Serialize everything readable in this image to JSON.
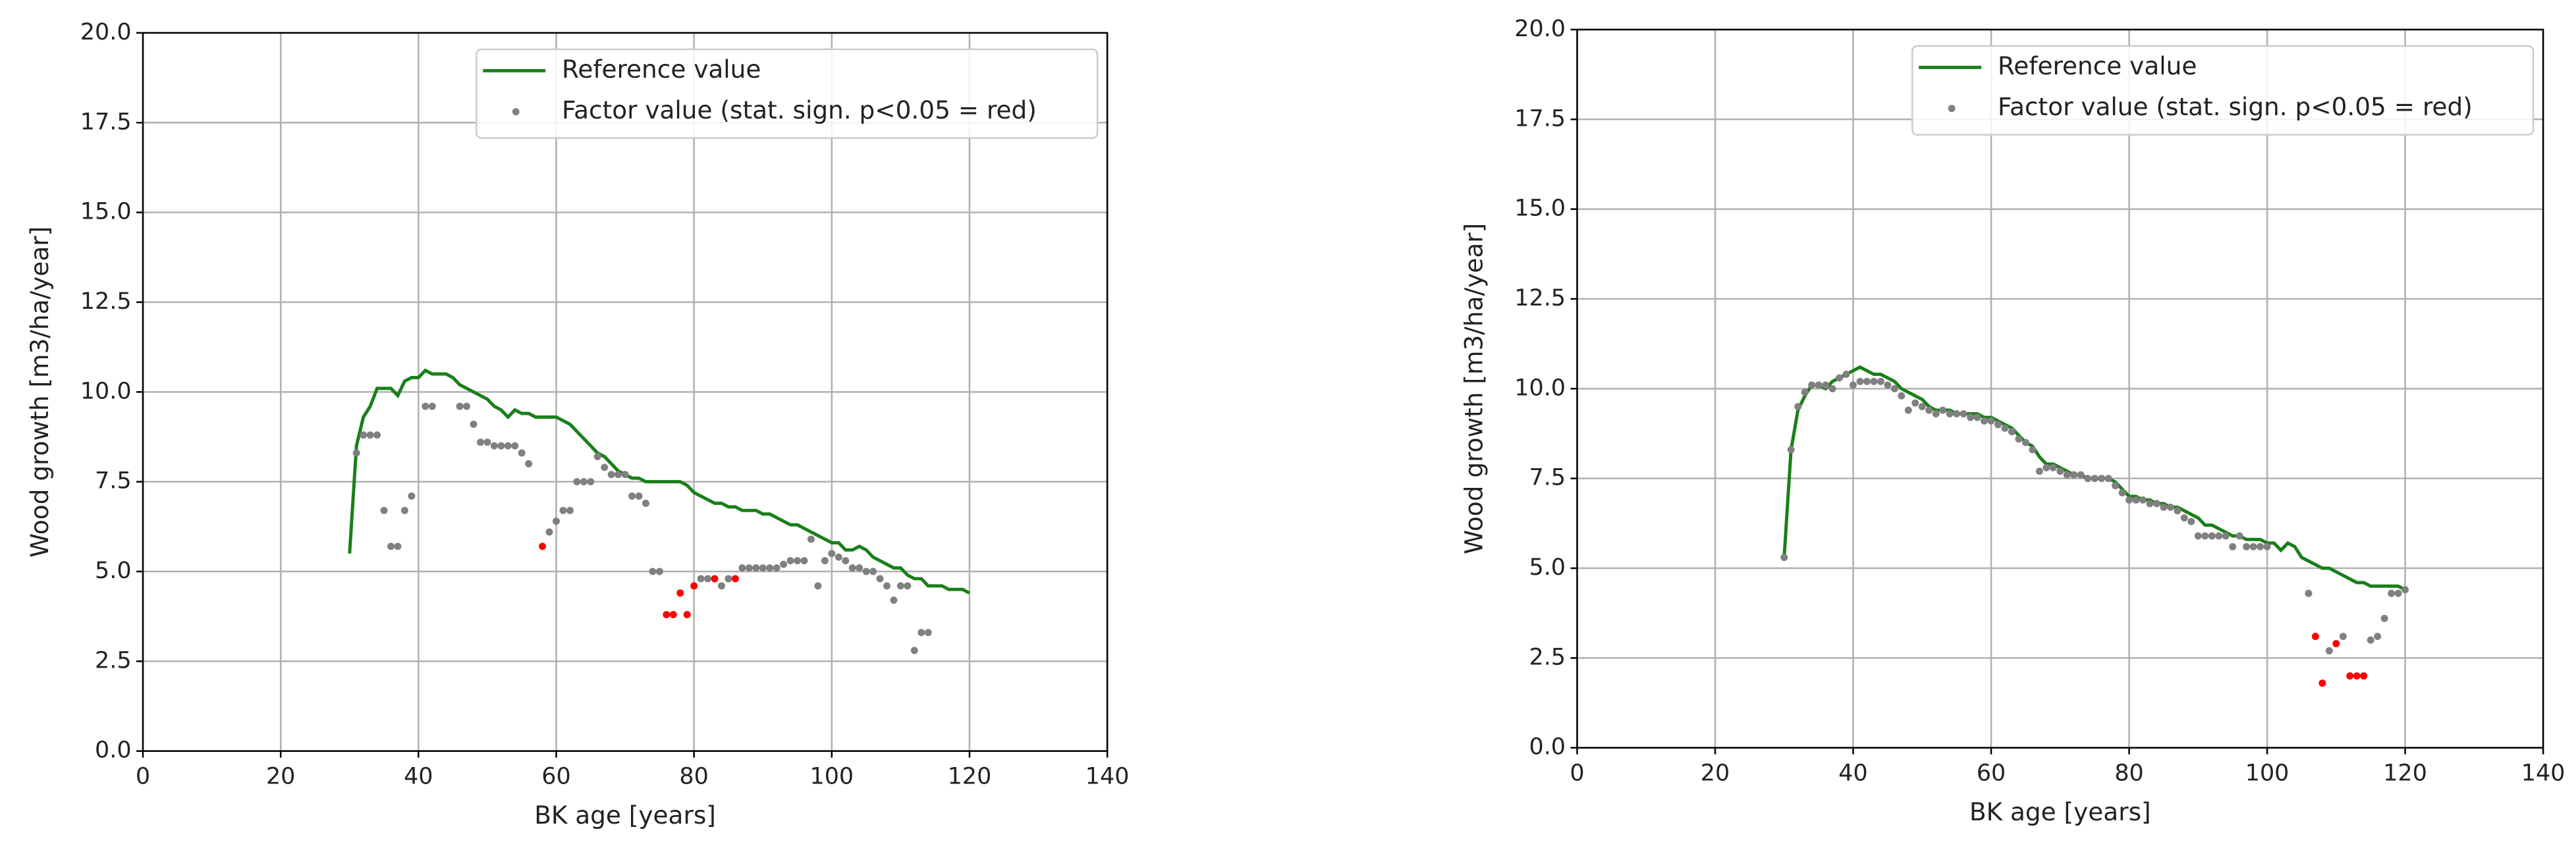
{
  "chart_data": [
    {
      "type": "line",
      "xlabel": "BK age [years]",
      "ylabel": "Wood growth [m3/ha/year]",
      "xlim": [
        0,
        140
      ],
      "ylim": [
        0,
        20
      ],
      "xticks": [
        0,
        20,
        40,
        60,
        80,
        100,
        120,
        140
      ],
      "yticks": [
        {
          "value": 0,
          "label": "0.0"
        },
        {
          "value": 2.5,
          "label": "2.5"
        },
        {
          "value": 5,
          "label": "5.0"
        },
        {
          "value": 7.5,
          "label": "7.5"
        },
        {
          "value": 10,
          "label": "10.0"
        },
        {
          "value": 12.5,
          "label": "12.5"
        },
        {
          "value": 15,
          "label": "15.0"
        },
        {
          "value": 17.5,
          "label": "17.5"
        },
        {
          "value": 20,
          "label": "20.0"
        }
      ],
      "grid": true,
      "legend": "upper right",
      "series": [
        {
          "name": "Reference value",
          "color": "#1a7f1a",
          "x": [
            30,
            31,
            32,
            33,
            34,
            35,
            36,
            37,
            38,
            39,
            40,
            41,
            42,
            43,
            44,
            45,
            46,
            47,
            48,
            49,
            50,
            51,
            52,
            53,
            54,
            55,
            56,
            57,
            58,
            59,
            60,
            61,
            62,
            63,
            64,
            65,
            66,
            67,
            68,
            69,
            70,
            71,
            72,
            73,
            74,
            75,
            76,
            77,
            78,
            79,
            80,
            81,
            82,
            83,
            84,
            85,
            86,
            87,
            88,
            89,
            90,
            91,
            92,
            93,
            94,
            95,
            96,
            97,
            98,
            99,
            100,
            101,
            102,
            103,
            104,
            105,
            106,
            107,
            108,
            109,
            110,
            111,
            112,
            113,
            114,
            115,
            116,
            117,
            118,
            119,
            120
          ],
          "values": [
            5.5,
            8.5,
            9.3,
            9.6,
            10.1,
            10.1,
            10.1,
            9.9,
            10.3,
            10.4,
            10.4,
            10.6,
            10.5,
            10.5,
            10.5,
            10.4,
            10.2,
            10.1,
            10.0,
            9.9,
            9.8,
            9.6,
            9.5,
            9.3,
            9.5,
            9.4,
            9.4,
            9.3,
            9.3,
            9.3,
            9.3,
            9.2,
            9.1,
            8.9,
            8.7,
            8.5,
            8.3,
            8.2,
            8.0,
            7.8,
            7.7,
            7.6,
            7.6,
            7.5,
            7.5,
            7.5,
            7.5,
            7.5,
            7.5,
            7.4,
            7.2,
            7.1,
            7.0,
            6.9,
            6.9,
            6.8,
            6.8,
            6.7,
            6.7,
            6.7,
            6.6,
            6.6,
            6.5,
            6.4,
            6.3,
            6.3,
            6.2,
            6.1,
            6.0,
            5.9,
            5.8,
            5.8,
            5.6,
            5.6,
            5.7,
            5.6,
            5.4,
            5.3,
            5.2,
            5.1,
            5.1,
            4.9,
            4.8,
            4.8,
            4.6,
            4.6,
            4.6,
            4.5,
            4.5,
            4.5,
            4.4
          ]
        },
        {
          "name": "Factor value (stat. sign. p<0.05 = red)",
          "type": "scatter",
          "color": "gray",
          "x": [
            31,
            32,
            33,
            34,
            35,
            36,
            37,
            38,
            39,
            41,
            42,
            46,
            47,
            48,
            49,
            50,
            51,
            52,
            53,
            54,
            55,
            56,
            58,
            59,
            60,
            61,
            62,
            63,
            64,
            65,
            66,
            67,
            68,
            69,
            70,
            71,
            72,
            73,
            74,
            75,
            76,
            77,
            78,
            79,
            80,
            81,
            82,
            83,
            84,
            85,
            86,
            87,
            88,
            89,
            90,
            91,
            92,
            93,
            94,
            95,
            96,
            97,
            98,
            99,
            100,
            101,
            102,
            103,
            104,
            105,
            106,
            107,
            108,
            109,
            110,
            111,
            112,
            113,
            114
          ],
          "values": [
            8.3,
            8.8,
            8.8,
            8.8,
            6.7,
            5.7,
            5.7,
            6.7,
            7.1,
            9.6,
            9.6,
            9.6,
            9.6,
            9.1,
            8.6,
            8.6,
            8.5,
            8.5,
            8.5,
            8.5,
            8.3,
            8.0,
            5.7,
            6.1,
            6.4,
            6.7,
            6.7,
            7.5,
            7.5,
            7.5,
            8.2,
            7.9,
            7.7,
            7.7,
            7.7,
            7.1,
            7.1,
            6.9,
            5.0,
            5.0,
            3.8,
            3.8,
            4.4,
            3.8,
            4.6,
            4.8,
            4.8,
            4.8,
            4.6,
            4.8,
            4.8,
            5.1,
            5.1,
            5.1,
            5.1,
            5.1,
            5.1,
            5.2,
            5.3,
            5.3,
            5.3,
            5.9,
            4.6,
            5.3,
            5.5,
            5.4,
            5.3,
            5.1,
            5.1,
            5.0,
            5.0,
            4.8,
            4.6,
            4.2,
            4.6,
            4.6,
            2.8,
            3.3,
            3.3
          ],
          "point_colors": [
            "gray",
            "gray",
            "gray",
            "gray",
            "gray",
            "gray",
            "gray",
            "gray",
            "gray",
            "gray",
            "gray",
            "gray",
            "gray",
            "gray",
            "gray",
            "gray",
            "gray",
            "gray",
            "gray",
            "gray",
            "gray",
            "gray",
            "red",
            "gray",
            "gray",
            "gray",
            "gray",
            "gray",
            "gray",
            "gray",
            "gray",
            "gray",
            "gray",
            "gray",
            "gray",
            "gray",
            "gray",
            "gray",
            "gray",
            "gray",
            "red",
            "red",
            "red",
            "red",
            "red",
            "gray",
            "gray",
            "red",
            "gray",
            "gray",
            "red",
            "gray",
            "gray",
            "gray",
            "gray",
            "gray",
            "gray",
            "gray",
            "gray",
            "gray",
            "gray",
            "gray",
            "gray",
            "gray",
            "gray",
            "gray",
            "gray",
            "gray",
            "gray",
            "gray",
            "gray",
            "gray",
            "gray",
            "gray",
            "gray",
            "gray",
            "gray",
            "gray",
            "gray"
          ]
        }
      ]
    },
    {
      "type": "line",
      "xlabel": "BK age [years]",
      "ylabel": "Wood growth [m3/ha/year]",
      "xlim": [
        0,
        140
      ],
      "ylim": [
        0,
        20
      ],
      "xticks": [
        0,
        20,
        40,
        60,
        80,
        100,
        120,
        140
      ],
      "yticks": [
        {
          "value": 0,
          "label": "0.0"
        },
        {
          "value": 2.5,
          "label": "2.5"
        },
        {
          "value": 5,
          "label": "5.0"
        },
        {
          "value": 7.5,
          "label": "7.5"
        },
        {
          "value": 10,
          "label": "10.0"
        },
        {
          "value": 12.5,
          "label": "12.5"
        },
        {
          "value": 15,
          "label": "15.0"
        },
        {
          "value": 17.5,
          "label": "17.5"
        },
        {
          "value": 20,
          "label": "20.0"
        }
      ],
      "grid": true,
      "legend": "upper right",
      "series": [
        {
          "name": "Reference value",
          "color": "#1a7f1a",
          "x": [
            30,
            31,
            32,
            33,
            34,
            35,
            36,
            37,
            38,
            39,
            40,
            41,
            42,
            43,
            44,
            45,
            46,
            47,
            48,
            49,
            50,
            51,
            52,
            53,
            54,
            55,
            56,
            57,
            58,
            59,
            60,
            61,
            62,
            63,
            64,
            65,
            66,
            67,
            68,
            69,
            70,
            71,
            72,
            73,
            74,
            75,
            76,
            77,
            78,
            79,
            80,
            81,
            82,
            83,
            84,
            85,
            86,
            87,
            88,
            89,
            90,
            91,
            92,
            93,
            94,
            95,
            96,
            97,
            98,
            99,
            100,
            101,
            102,
            103,
            104,
            105,
            106,
            107,
            108,
            109,
            110,
            111,
            112,
            113,
            114,
            115,
            116,
            117,
            118,
            119,
            120
          ],
          "values": [
            5.3,
            8.3,
            9.4,
            9.8,
            10.1,
            10.1,
            10.0,
            10.2,
            10.3,
            10.4,
            10.5,
            10.6,
            10.5,
            10.4,
            10.4,
            10.3,
            10.2,
            10.0,
            9.9,
            9.8,
            9.7,
            9.5,
            9.4,
            9.4,
            9.4,
            9.3,
            9.3,
            9.3,
            9.3,
            9.2,
            9.2,
            9.1,
            9.0,
            8.9,
            8.7,
            8.5,
            8.4,
            8.1,
            7.9,
            7.9,
            7.8,
            7.7,
            7.6,
            7.6,
            7.5,
            7.5,
            7.5,
            7.5,
            7.4,
            7.2,
            7.0,
            7.0,
            6.9,
            6.9,
            6.8,
            6.8,
            6.7,
            6.7,
            6.6,
            6.5,
            6.4,
            6.2,
            6.2,
            6.1,
            6.0,
            5.9,
            5.9,
            5.8,
            5.8,
            5.8,
            5.7,
            5.7,
            5.5,
            5.7,
            5.6,
            5.3,
            5.2,
            5.1,
            5.0,
            5.0,
            4.9,
            4.8,
            4.7,
            4.6,
            4.6,
            4.5,
            4.5,
            4.5,
            4.5,
            4.5,
            4.4
          ]
        },
        {
          "name": "Factor value (stat. sign. p<0.05 = red)",
          "type": "scatter",
          "color": "gray",
          "x": [
            30,
            31,
            32,
            33,
            34,
            35,
            36,
            37,
            38,
            39,
            40,
            41,
            42,
            43,
            44,
            45,
            46,
            47,
            48,
            49,
            50,
            51,
            52,
            53,
            54,
            55,
            56,
            57,
            58,
            59,
            60,
            61,
            62,
            63,
            64,
            65,
            66,
            67,
            68,
            69,
            70,
            71,
            72,
            73,
            74,
            75,
            76,
            77,
            78,
            79,
            80,
            81,
            82,
            83,
            84,
            85,
            86,
            87,
            88,
            89,
            90,
            91,
            92,
            93,
            94,
            95,
            96,
            97,
            98,
            99,
            100,
            106,
            107,
            108,
            109,
            110,
            111,
            112,
            113,
            114,
            115,
            116,
            117,
            118,
            119,
            120
          ],
          "values": [
            5.3,
            8.3,
            9.5,
            9.9,
            10.1,
            10.1,
            10.1,
            10.0,
            10.3,
            10.4,
            10.1,
            10.2,
            10.2,
            10.2,
            10.2,
            10.1,
            10.0,
            9.8,
            9.4,
            9.6,
            9.5,
            9.4,
            9.3,
            9.4,
            9.3,
            9.3,
            9.3,
            9.2,
            9.2,
            9.1,
            9.1,
            9.0,
            8.9,
            8.8,
            8.6,
            8.5,
            8.3,
            7.7,
            7.8,
            7.8,
            7.7,
            7.6,
            7.6,
            7.6,
            7.5,
            7.5,
            7.5,
            7.5,
            7.3,
            7.1,
            6.9,
            6.9,
            6.9,
            6.8,
            6.8,
            6.7,
            6.7,
            6.6,
            6.4,
            6.3,
            5.9,
            5.9,
            5.9,
            5.9,
            5.9,
            5.6,
            5.9,
            5.6,
            5.6,
            5.6,
            5.6,
            4.3,
            3.1,
            1.8,
            2.7,
            2.9,
            3.1,
            2.0,
            2.0,
            2.0,
            3.0,
            3.1,
            3.6,
            4.3,
            4.3,
            4.4
          ],
          "point_colors": [
            "gray",
            "gray",
            "gray",
            "gray",
            "gray",
            "gray",
            "gray",
            "gray",
            "gray",
            "gray",
            "gray",
            "gray",
            "gray",
            "gray",
            "gray",
            "gray",
            "gray",
            "gray",
            "gray",
            "gray",
            "gray",
            "gray",
            "gray",
            "gray",
            "gray",
            "gray",
            "gray",
            "gray",
            "gray",
            "gray",
            "gray",
            "gray",
            "gray",
            "gray",
            "gray",
            "gray",
            "gray",
            "gray",
            "gray",
            "gray",
            "gray",
            "gray",
            "gray",
            "gray",
            "gray",
            "gray",
            "gray",
            "gray",
            "gray",
            "gray",
            "gray",
            "gray",
            "gray",
            "gray",
            "gray",
            "gray",
            "gray",
            "gray",
            "gray",
            "gray",
            "gray",
            "gray",
            "gray",
            "gray",
            "gray",
            "gray",
            "gray",
            "gray",
            "gray",
            "gray",
            "gray",
            "gray",
            "red",
            "red",
            "gray",
            "red",
            "gray",
            "red",
            "red",
            "red",
            "gray",
            "gray",
            "gray",
            "gray",
            "gray",
            "gray"
          ]
        }
      ]
    }
  ]
}
